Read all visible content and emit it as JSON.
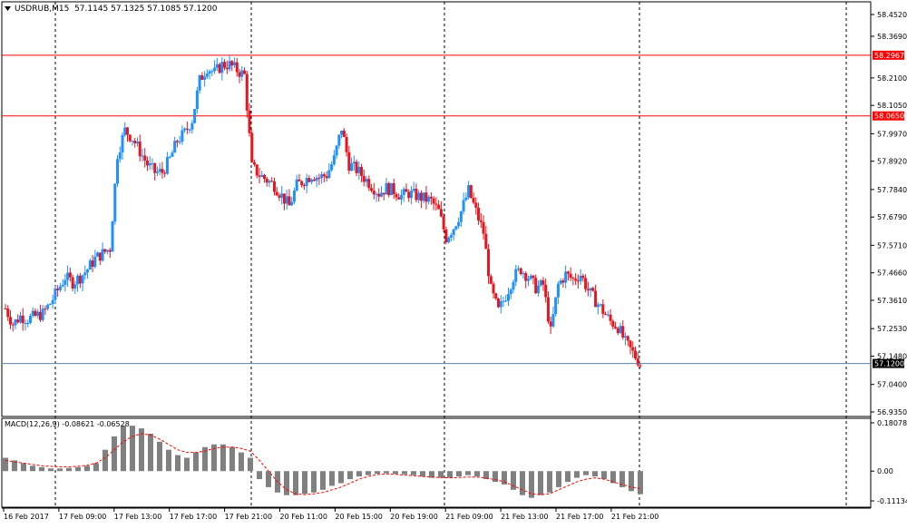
{
  "window": {
    "title": "USDRUB,M15",
    "ohlc": "57.1145 57.1325 57.1085 57.1200",
    "title_icon": "triangle-down-icon"
  },
  "colors": {
    "bull": "#1e90ff",
    "bear": "#e8141e",
    "hline": "#ff0000",
    "bid_line": "#5f7fa5",
    "macd_hist": "#808080",
    "macd_signal": "#ff0000",
    "grid_vline": "#000000"
  },
  "price_axis": {
    "ticks": [
      "58.4520",
      "58.3690",
      "58.2100",
      "58.1050",
      "57.9970",
      "57.8920",
      "57.7840",
      "57.6790",
      "57.5710",
      "57.4660",
      "57.3610",
      "57.2530",
      "57.1480",
      "57.0400",
      "56.9350"
    ],
    "min": 56.935,
    "max": 58.452,
    "levels": [
      {
        "label": "58.2967",
        "value": 58.2967
      },
      {
        "label": "58.0650",
        "value": 58.065
      }
    ],
    "current": {
      "label": "57.1200",
      "value": 57.12
    }
  },
  "macd": {
    "label": "MACD(12,26,9) -0.08621 -0.06528",
    "ticks": [
      "0.18078",
      "0.00",
      "-0.11134"
    ],
    "max": 0.18078,
    "min": -0.11134
  },
  "time_axis": {
    "labels": [
      "16 Feb 2017",
      "17 Feb 09:00",
      "17 Feb 13:00",
      "17 Feb 17:00",
      "17 Feb 21:00",
      "20 Feb 11:00",
      "20 Feb 15:00",
      "20 Feb 19:00",
      "21 Feb 09:00",
      "21 Feb 13:00",
      "21 Feb 17:00",
      "21 Feb 21:00"
    ]
  },
  "chart_data": {
    "type": "candlestick",
    "symbol": "USDRUB",
    "timeframe": "M15",
    "close_path": [
      57.33,
      57.27,
      57.3,
      57.29,
      57.3,
      57.31,
      57.35,
      57.4,
      57.45,
      57.43,
      57.45,
      57.48,
      57.52,
      57.54,
      57.56,
      57.92,
      58.01,
      57.98,
      57.93,
      57.88,
      57.85,
      57.85,
      57.9,
      57.97,
      58.0,
      58.05,
      58.2,
      58.25,
      58.23,
      58.26,
      58.26,
      58.24,
      58.22,
      57.87,
      57.84,
      57.82,
      57.8,
      57.76,
      57.72,
      57.8,
      57.82,
      57.84,
      57.83,
      57.84,
      57.9,
      58.02,
      57.88,
      57.86,
      57.83,
      57.8,
      57.77,
      57.79,
      57.78,
      57.76,
      57.77,
      57.76,
      57.75,
      57.74,
      57.7,
      57.6,
      57.64,
      57.7,
      57.78,
      57.7,
      57.62,
      57.4,
      57.32,
      57.38,
      57.45,
      57.48,
      57.45,
      57.41,
      57.42,
      57.24,
      57.42,
      57.46,
      57.44,
      57.46,
      57.4,
      57.36,
      57.32,
      57.28,
      57.26,
      57.2,
      57.16,
      57.12
    ],
    "macd_main": [
      0.05,
      0.04,
      0.03,
      0.02,
      0.015,
      0.01,
      0.01,
      0.012,
      0.015,
      0.02,
      0.03,
      0.08,
      0.13,
      0.17,
      0.17,
      0.16,
      0.14,
      0.11,
      0.08,
      0.06,
      0.05,
      0.07,
      0.09,
      0.1,
      0.1,
      0.09,
      0.07,
      0.05,
      -0.03,
      -0.06,
      -0.08,
      -0.09,
      -0.09,
      -0.085,
      -0.08,
      -0.07,
      -0.055,
      -0.045,
      -0.03,
      -0.02,
      -0.015,
      -0.01,
      -0.008,
      -0.01,
      -0.012,
      -0.015,
      -0.02,
      -0.025,
      -0.025,
      -0.025,
      -0.02,
      -0.015,
      -0.02,
      -0.03,
      -0.04,
      -0.05,
      -0.07,
      -0.09,
      -0.1,
      -0.09,
      -0.08,
      -0.06,
      -0.04,
      -0.025,
      -0.015,
      -0.02,
      -0.03,
      -0.045,
      -0.06,
      -0.075,
      -0.0862
    ],
    "macd_signal": [
      0.04,
      0.035,
      0.03,
      0.025,
      0.02,
      0.018,
      0.016,
      0.016,
      0.018,
      0.022,
      0.03,
      0.05,
      0.08,
      0.11,
      0.13,
      0.14,
      0.135,
      0.12,
      0.1,
      0.08,
      0.07,
      0.07,
      0.075,
      0.085,
      0.09,
      0.09,
      0.085,
      0.075,
      0.04,
      0.0,
      -0.04,
      -0.07,
      -0.085,
      -0.088,
      -0.085,
      -0.08,
      -0.07,
      -0.06,
      -0.045,
      -0.03,
      -0.02,
      -0.013,
      -0.01,
      -0.012,
      -0.015,
      -0.017,
      -0.02,
      -0.022,
      -0.024,
      -0.025,
      -0.024,
      -0.022,
      -0.022,
      -0.026,
      -0.032,
      -0.04,
      -0.055,
      -0.07,
      -0.085,
      -0.088,
      -0.085,
      -0.07,
      -0.055,
      -0.04,
      -0.03,
      -0.025,
      -0.03,
      -0.04,
      -0.05,
      -0.06,
      -0.0653
    ]
  }
}
